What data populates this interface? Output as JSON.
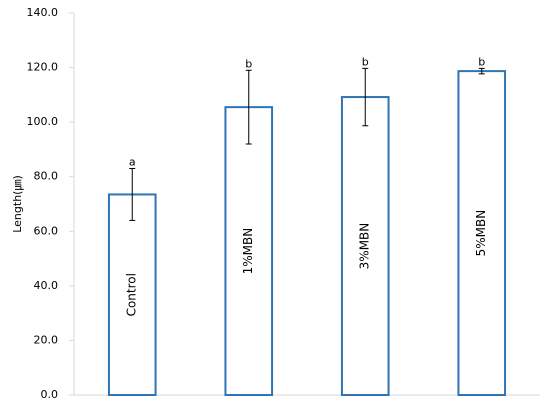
{
  "chart_data": {
    "type": "bar",
    "y_label": "Length(㎛)",
    "categories": [
      "Control",
      "1%MBN",
      "3%MBN",
      "5%MBN"
    ],
    "values": [
      73.5,
      105.5,
      109.2,
      118.7
    ],
    "errors": [
      9.5,
      13.5,
      10.5,
      1.0
    ],
    "letters": [
      "a",
      "b",
      "b",
      "b"
    ],
    "color": "#2e75b6",
    "ylim": [
      0,
      140
    ],
    "yticks": [
      {
        "value": 0,
        "label": "0.0"
      },
      {
        "value": 20,
        "label": "20.0"
      },
      {
        "value": 40,
        "label": "40.0"
      },
      {
        "value": 60,
        "label": "60.0"
      },
      {
        "value": 80,
        "label": "80.0"
      },
      {
        "value": 100,
        "label": "100.0"
      },
      {
        "value": 120,
        "label": "120.0"
      },
      {
        "value": 140,
        "label": "140.0"
      }
    ],
    "grid": false
  }
}
